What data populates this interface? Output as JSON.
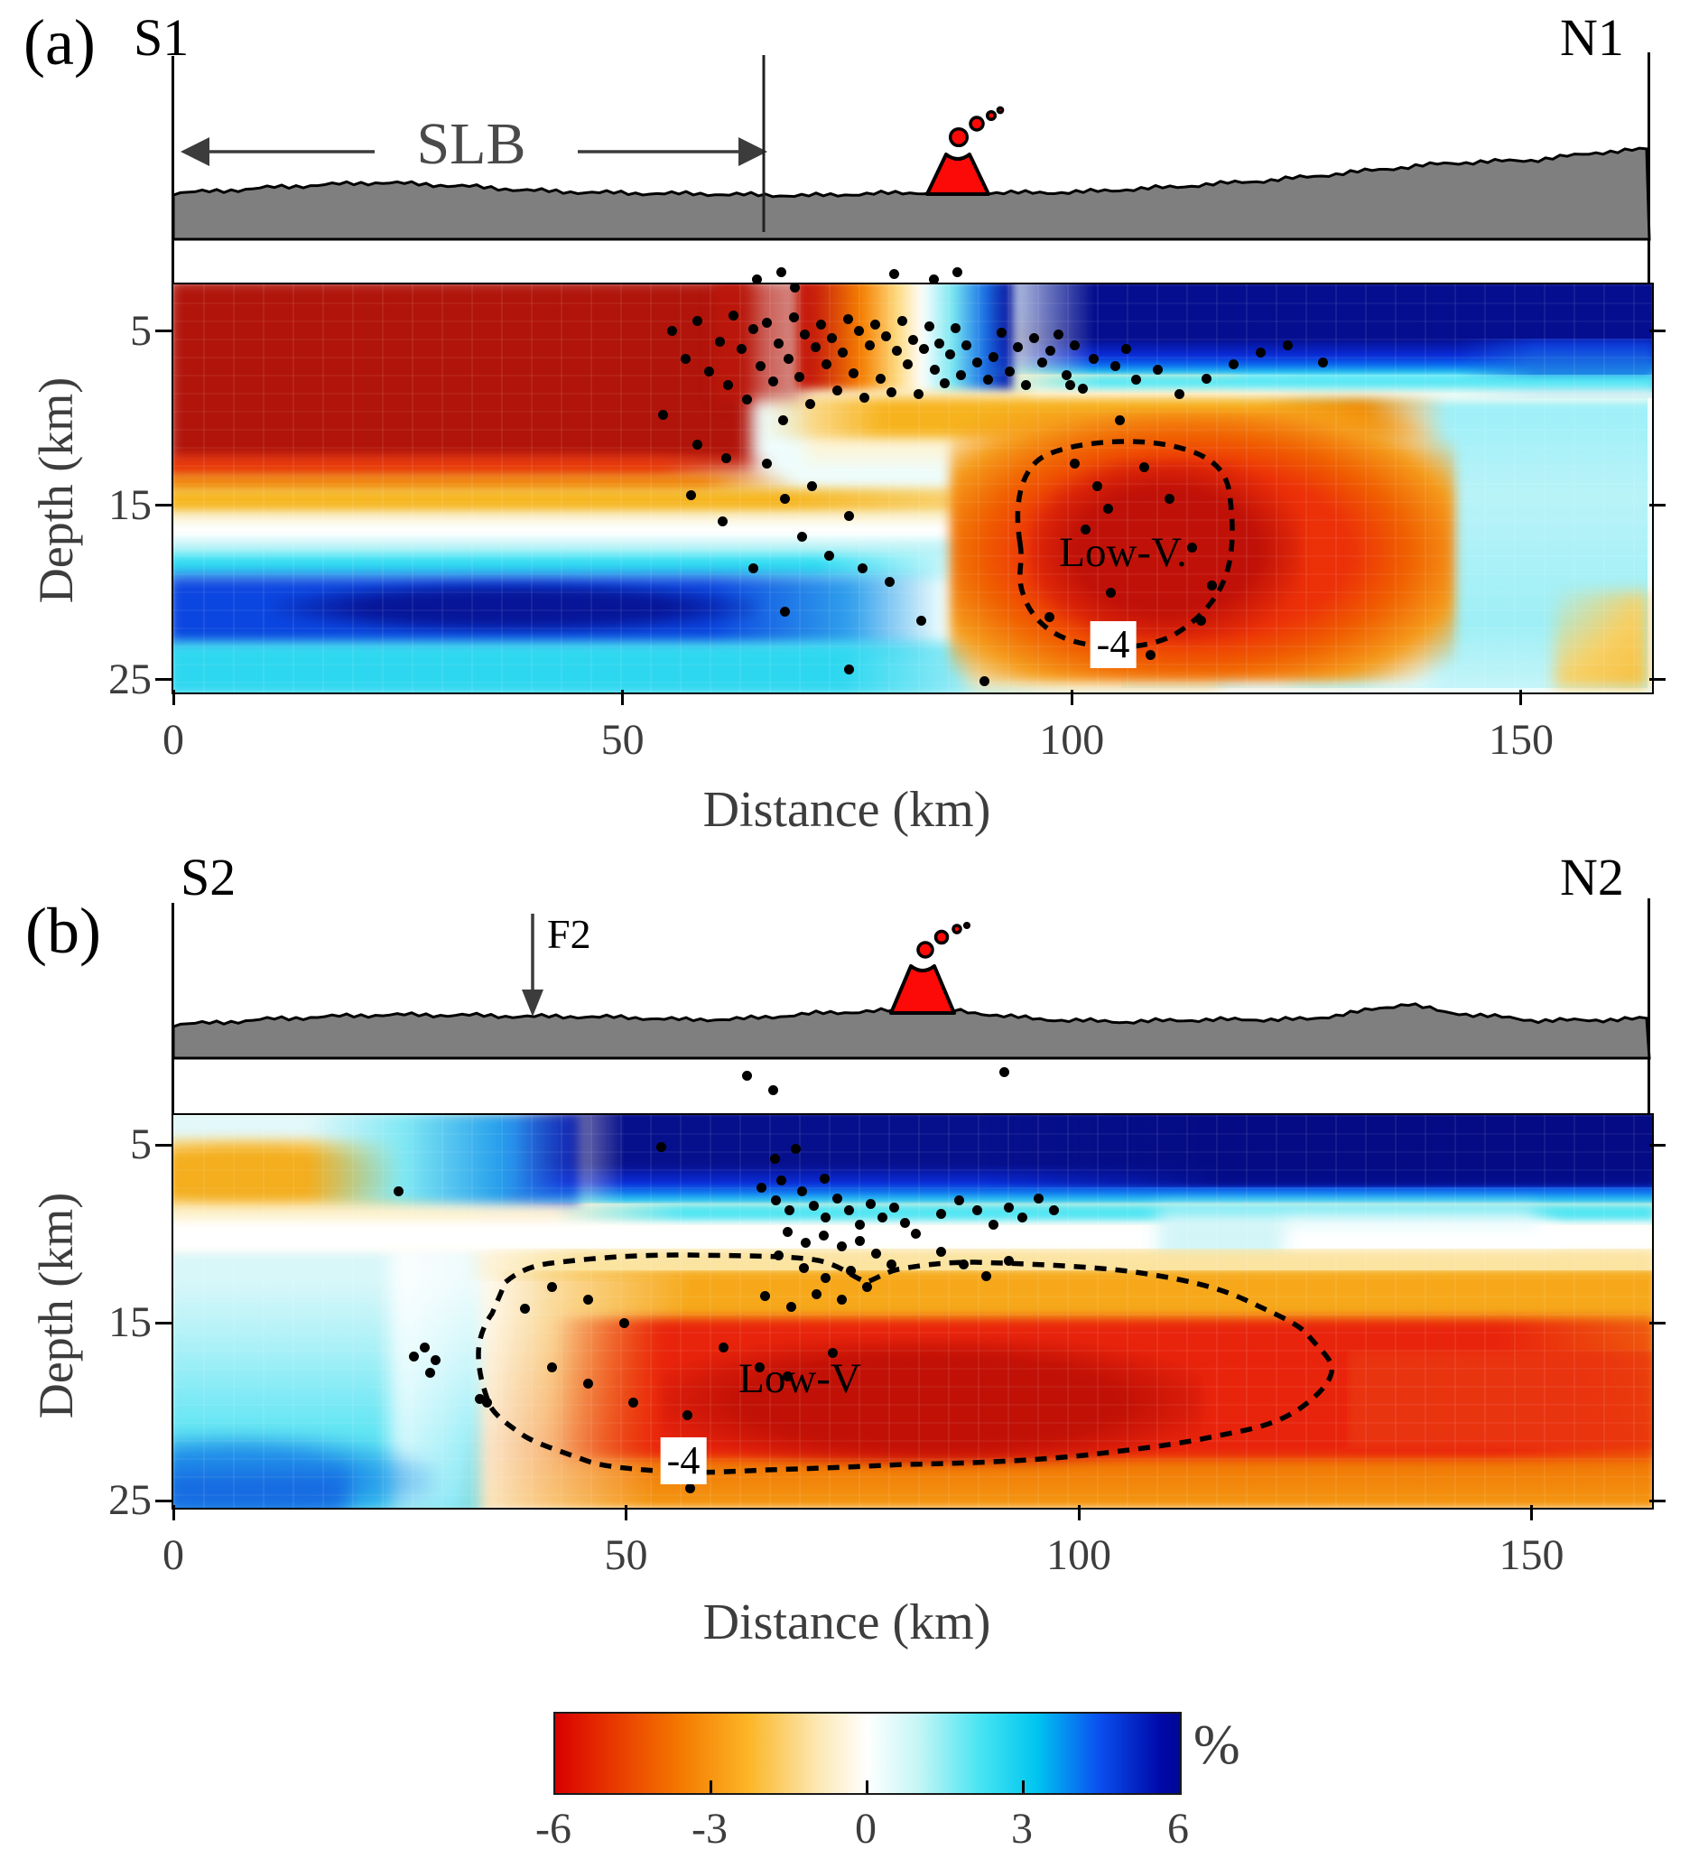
{
  "figure": {
    "title": "Seismic tomography cross sections",
    "background": "#ffffff"
  },
  "panels": [
    {
      "id": "a",
      "corner_label": "(a)",
      "left_end_label": "S1",
      "right_end_label": "N1",
      "region_annotation": "SLB",
      "fault_annotation": "",
      "low_v_label": "Low-V.",
      "contour_label": "-4",
      "xlabel": "Distance (km)",
      "ylabel": "Depth (km)",
      "x_tick_labels": [
        "0",
        "50",
        "100",
        "150"
      ],
      "y_tick_labels": [
        "5",
        "15",
        "25"
      ]
    },
    {
      "id": "b",
      "corner_label": "(b)",
      "left_end_label": "S2",
      "right_end_label": "N2",
      "region_annotation": "",
      "fault_annotation": "F2",
      "low_v_label": "Low-V",
      "contour_label": "-4",
      "xlabel": "Distance (km)",
      "ylabel": "Depth (km)",
      "x_tick_labels": [
        "0",
        "50",
        "100",
        "150"
      ],
      "y_tick_labels": [
        "5",
        "15",
        "25"
      ]
    }
  ],
  "colorbar": {
    "tick_labels": [
      "-6",
      "-3",
      "0",
      "3",
      "6"
    ],
    "unit": "%"
  },
  "colors": {
    "volcano_red": "#fb0a07",
    "topography_gray": "#7f7f7f",
    "annotation_gray": "#3c3c3c",
    "tick_text_gray": "#3d3d3d",
    "negative_extreme_red": "#b0140a",
    "positive_extreme_navy": "#050e8e"
  },
  "chart_data": {
    "type": "heatmap",
    "shared": {
      "xlabel": "Distance (km)",
      "ylabel": "Depth (km)",
      "x_ticks_km": [
        0,
        50,
        100,
        150
      ],
      "depth_ticks_km": [
        5,
        15,
        25
      ],
      "colorbar": {
        "label": "%",
        "min": -6,
        "max": 6,
        "ticks": [
          -6,
          -3,
          0,
          3,
          6
        ],
        "meaning": "velocity anomaly in percent; red = low velocity (negative), blue = high velocity (positive)"
      },
      "contour_level_pct": -4
    },
    "panels": [
      {
        "name": "(a) S1-N1",
        "x_range_km": [
          0,
          164
        ],
        "depth_range_km": [
          2.3,
          25.5
        ],
        "annotations": [
          {
            "text": "SLB",
            "extent_km": [
              0,
              66
            ]
          },
          {
            "text": "volcano",
            "x_km": 87.3
          },
          {
            "text": "Low-V.",
            "x_km": 105.7,
            "depth_km": 15.0
          },
          {
            "text": "-4",
            "x_km": 104.6,
            "depth_km": 20.2
          }
        ],
        "anomalies": [
          {
            "label": "strong shallow low-velocity zone beneath SLB",
            "x_km": [
              0,
              55
            ],
            "depth_km": [
              2.3,
              12
            ],
            "anomaly_pct": -6
          },
          {
            "label": "shallow high-velocity layer north of 70 km",
            "x_km": [
              70,
              164
            ],
            "depth_km": [
              2.3,
              8
            ],
            "anomaly_pct": 6
          },
          {
            "label": "Low-V body outlined by -4% dashed contour",
            "x_km": [
              94,
              118
            ],
            "depth_km": [
              9,
              22
            ],
            "anomaly_pct": -5
          },
          {
            "label": "deep high-velocity zone",
            "x_km": [
              0,
              62
            ],
            "depth_km": [
              16,
              24
            ],
            "anomaly_pct": 4
          },
          {
            "label": "moderate high-velocity region at north end",
            "x_km": [
              118,
              164
            ],
            "depth_km": [
              8,
              25
            ],
            "anomaly_pct": 2
          }
        ],
        "earthquakes_km": [
          [
            65,
            2.0
          ],
          [
            67.7,
            1.6
          ],
          [
            69.2,
            2.5
          ],
          [
            80.2,
            1.7
          ],
          [
            84.6,
            2.0
          ],
          [
            87.3,
            1.6
          ],
          [
            55.5,
            5.0
          ],
          [
            57,
            6.6
          ],
          [
            58.3,
            4.4
          ],
          [
            59.6,
            7.3
          ],
          [
            60.8,
            5.6
          ],
          [
            61.7,
            8.1
          ],
          [
            62.3,
            4.1
          ],
          [
            63.2,
            6.0
          ],
          [
            63.9,
            8.9
          ],
          [
            64.6,
            4.9
          ],
          [
            65.4,
            7.0
          ],
          [
            66.1,
            4.5
          ],
          [
            66.8,
            7.9
          ],
          [
            67.4,
            5.7
          ],
          [
            67.9,
            10.1
          ],
          [
            68.5,
            6.6
          ],
          [
            69.1,
            4.2
          ],
          [
            69.7,
            7.6
          ],
          [
            70.3,
            5.2
          ],
          [
            70.9,
            9.2
          ],
          [
            71.5,
            5.9
          ],
          [
            72.1,
            4.6
          ],
          [
            72.7,
            6.9
          ],
          [
            73.3,
            5.4
          ],
          [
            73.9,
            8.4
          ],
          [
            74.5,
            6.2
          ],
          [
            75.1,
            4.3
          ],
          [
            75.7,
            7.4
          ],
          [
            76.3,
            5.0
          ],
          [
            76.9,
            8.8
          ],
          [
            77.5,
            5.8
          ],
          [
            78.1,
            4.6
          ],
          [
            78.7,
            7.7
          ],
          [
            79.3,
            5.3
          ],
          [
            79.9,
            8.5
          ],
          [
            80.5,
            6.1
          ],
          [
            81.1,
            4.4
          ],
          [
            81.7,
            6.9
          ],
          [
            82.3,
            5.5
          ],
          [
            82.9,
            8.6
          ],
          [
            83.5,
            6.0
          ],
          [
            84.1,
            4.7
          ],
          [
            84.7,
            7.2
          ],
          [
            85.3,
            5.7
          ],
          [
            85.9,
            8.0
          ],
          [
            86.5,
            6.3
          ],
          [
            87.1,
            4.8
          ],
          [
            87.7,
            7.5
          ],
          [
            88.3,
            5.8
          ],
          [
            89.5,
            6.8
          ],
          [
            90.7,
            7.8
          ],
          [
            91.3,
            6.5
          ],
          [
            92.2,
            5.1
          ],
          [
            93.1,
            7.3
          ],
          [
            94,
            5.9
          ],
          [
            94.9,
            8.1
          ],
          [
            95.8,
            5.4
          ],
          [
            96.7,
            6.8
          ],
          [
            97.6,
            6.1
          ],
          [
            98.5,
            5.2
          ],
          [
            99.4,
            7.5
          ],
          [
            100.3,
            5.8
          ],
          [
            101.2,
            8.3
          ],
          [
            102.4,
            6.6
          ],
          [
            104.8,
            7.0
          ],
          [
            106,
            6.0
          ],
          [
            107.2,
            7.8
          ],
          [
            109.6,
            7.2
          ],
          [
            112,
            8.6
          ],
          [
            115,
            7.7
          ],
          [
            118,
            6.9
          ],
          [
            121,
            6.2
          ],
          [
            124,
            5.8
          ],
          [
            128,
            6.8
          ],
          [
            54.5,
            9.8
          ],
          [
            58.3,
            11.5
          ],
          [
            61.5,
            12.3
          ],
          [
            57.6,
            14.4
          ],
          [
            61.1,
            15.9
          ],
          [
            64.6,
            18.6
          ],
          [
            68.1,
            21.1
          ],
          [
            66.1,
            12.6
          ],
          [
            68.1,
            14.6
          ],
          [
            71.1,
            13.9
          ],
          [
            75.2,
            15.6
          ],
          [
            76.7,
            18.6
          ],
          [
            79.7,
            19.4
          ],
          [
            83.2,
            21.6
          ],
          [
            75.2,
            24.4
          ],
          [
            90.3,
            25.1
          ],
          [
            70,
            16.8
          ],
          [
            73,
            17.9
          ],
          [
            100.3,
            12.6
          ],
          [
            102.8,
            13.9
          ],
          [
            108.1,
            12.8
          ],
          [
            110.9,
            14.6
          ],
          [
            113.4,
            17.4
          ],
          [
            115.6,
            19.6
          ],
          [
            114.4,
            21.6
          ],
          [
            104.3,
            20.0
          ],
          [
            97.5,
            21.4
          ],
          [
            108.8,
            23.6
          ],
          [
            99.8,
            8.1
          ],
          [
            105.3,
            10.1
          ],
          [
            101.5,
            16.4
          ],
          [
            104,
            15.2
          ]
        ]
      },
      {
        "name": "(b) S2-N2",
        "x_range_km": [
          0,
          163
        ],
        "depth_range_km": [
          3.3,
          25.1
        ],
        "annotations": [
          {
            "text": "F2",
            "x_km": 39.8
          },
          {
            "text": "volcano",
            "x_km": 83.0
          },
          {
            "text": "Low-V",
            "x_km": 69.4,
            "depth_km": 17.8
          },
          {
            "text": "-4",
            "x_km": 56.5,
            "depth_km": 22.3
          }
        ],
        "anomalies": [
          {
            "label": "shallow high-velocity layer",
            "x_km": [
              25,
              163
            ],
            "depth_km": [
              3.3,
              8
            ],
            "anomaly_pct": 6
          },
          {
            "label": "elongated Low-V body outlined by -4% dashed contour",
            "x_km": [
              34,
              129
            ],
            "depth_km": [
              11,
              22
            ],
            "anomaly_pct": -5
          },
          {
            "label": "shallow low-velocity patch at south end",
            "x_km": [
              0,
              15
            ],
            "depth_km": [
              3.3,
              7
            ],
            "anomaly_pct": -3
          },
          {
            "label": "high-velocity column at south end",
            "x_km": [
              0,
              22
            ],
            "depth_km": [
              10,
              25
            ],
            "anomaly_pct": 3
          },
          {
            "label": "deep low-velocity zone extending to north end",
            "x_km": [
              110,
              163
            ],
            "depth_km": [
              14,
              25
            ],
            "anomaly_pct": -4
          }
        ],
        "earthquakes_km": [
          [
            63.4,
            1.1
          ],
          [
            66.3,
            1.9
          ],
          [
            91.8,
            0.9
          ],
          [
            53.9,
            5.1
          ],
          [
            66.5,
            5.8
          ],
          [
            68.7,
            5.2
          ],
          [
            67.1,
            7.0
          ],
          [
            71.9,
            6.9
          ],
          [
            24.9,
            7.6
          ],
          [
            65,
            7.4
          ],
          [
            66.6,
            8.1
          ],
          [
            68,
            8.7
          ],
          [
            69.4,
            7.6
          ],
          [
            70.7,
            8.4
          ],
          [
            72,
            9.1
          ],
          [
            73.3,
            8.0
          ],
          [
            74.6,
            8.7
          ],
          [
            75.8,
            9.5
          ],
          [
            77,
            8.3
          ],
          [
            78.3,
            9.1
          ],
          [
            79.6,
            8.5
          ],
          [
            80.8,
            9.4
          ],
          [
            82,
            10.0
          ],
          [
            67.8,
            9.9
          ],
          [
            69.8,
            10.5
          ],
          [
            71.8,
            10.1
          ],
          [
            73.8,
            10.7
          ],
          [
            75.8,
            10.4
          ],
          [
            77.6,
            11.1
          ],
          [
            79.3,
            11.7
          ],
          [
            74.8,
            12.1
          ],
          [
            72,
            12.5
          ],
          [
            69.6,
            11.9
          ],
          [
            66.8,
            11.2
          ],
          [
            76.6,
            13.0
          ],
          [
            73.8,
            13.7
          ],
          [
            71,
            13.4
          ],
          [
            68.2,
            14.1
          ],
          [
            65.4,
            13.5
          ],
          [
            84.8,
            8.9
          ],
          [
            86.8,
            8.1
          ],
          [
            88.8,
            8.7
          ],
          [
            90.6,
            9.5
          ],
          [
            92.3,
            8.5
          ],
          [
            93.8,
            9.1
          ],
          [
            95.6,
            8.0
          ],
          [
            97.3,
            8.7
          ],
          [
            84.8,
            11.0
          ],
          [
            87.3,
            11.7
          ],
          [
            89.8,
            12.4
          ],
          [
            92.3,
            11.5
          ],
          [
            26.6,
            16.9
          ],
          [
            27.8,
            16.4
          ],
          [
            29,
            17.1
          ],
          [
            28.4,
            17.8
          ],
          [
            33.8,
            19.3
          ],
          [
            34.6,
            19.5
          ],
          [
            41.8,
            17.5
          ],
          [
            45.8,
            18.4
          ],
          [
            50.8,
            19.5
          ],
          [
            56.8,
            20.2
          ],
          [
            60.8,
            16.4
          ],
          [
            64.8,
            17.5
          ],
          [
            57.1,
            24.3
          ],
          [
            49.8,
            15.0
          ],
          [
            45.8,
            13.7
          ],
          [
            41.8,
            13.0
          ],
          [
            38.8,
            14.2
          ],
          [
            67.8,
            18.0
          ],
          [
            72.8,
            16.7
          ]
        ]
      }
    ]
  }
}
